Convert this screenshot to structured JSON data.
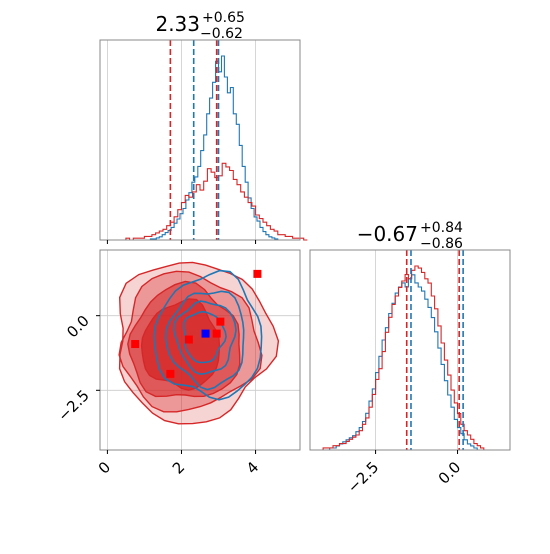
{
  "chart_data": {
    "type": "corner",
    "colors": {
      "red": "#d62728",
      "blue": "#1f77b4",
      "grid": "#cccccc",
      "frame": "#888888"
    },
    "param1": {
      "title_value": "2.33",
      "title_plus": "+0.65",
      "title_minus": "−0.62",
      "quantiles_red": [
        1.7,
        2.95
      ],
      "quantiles_blue": [
        2.33,
        3.0
      ],
      "xlim": [
        -0.2,
        5.2
      ],
      "xticks": [
        0,
        2,
        4
      ],
      "xtick_labels": [
        "0",
        "2",
        "4"
      ],
      "hist_red": {
        "bin_start": 0.4,
        "bin_width": 0.1,
        "values": [
          0,
          1,
          0,
          1,
          1,
          1,
          2,
          2,
          3,
          4,
          5,
          6,
          8,
          10,
          13,
          17,
          21,
          25,
          24,
          27,
          31,
          28,
          33,
          40,
          38,
          35,
          36,
          43,
          41,
          39,
          34,
          31,
          27,
          24,
          21,
          19,
          14,
          12,
          10,
          8,
          6,
          5,
          3,
          3,
          2,
          2,
          1,
          1,
          1,
          0
        ]
      },
      "hist_blue": {
        "bin_start": 1.0,
        "bin_width": 0.08,
        "values": [
          0,
          0,
          1,
          1,
          2,
          3,
          5,
          7,
          9,
          12,
          16,
          20,
          25,
          30,
          38,
          45,
          55,
          60,
          70,
          85,
          100,
          120,
          135,
          150,
          170,
          160,
          175,
          155,
          140,
          145,
          120,
          110,
          90,
          70,
          55,
          40,
          30,
          22,
          18,
          12,
          8,
          5,
          3,
          2,
          1,
          0
        ]
      }
    },
    "param2": {
      "title_value": "−0.67",
      "title_plus": "+0.84",
      "title_minus": "−0.86",
      "quantiles_red": [
        -1.55,
        0.05
      ],
      "quantiles_blue": [
        -1.42,
        0.17
      ],
      "xlim": [
        -4.5,
        1.6
      ],
      "xticks": [
        -2.5,
        0.0
      ],
      "xtick_labels": [
        "−2.5",
        "0.0"
      ],
      "hist_red": {
        "bin_start": -4.2,
        "bin_width": 0.1,
        "values": [
          0,
          1,
          1,
          1,
          2,
          2,
          3,
          3,
          4,
          5,
          6,
          7,
          9,
          12,
          15,
          20,
          26,
          33,
          38,
          46,
          55,
          62,
          68,
          72,
          76,
          79,
          82,
          80,
          84,
          86,
          85,
          83,
          80,
          78,
          72,
          66,
          58,
          50,
          42,
          35,
          28,
          22,
          17,
          12,
          9,
          7,
          5,
          3,
          2,
          1
        ]
      },
      "hist_blue": {
        "bin_start": -4.0,
        "bin_width": 0.1,
        "values": [
          0,
          1,
          1,
          2,
          3,
          4,
          5,
          6,
          7,
          9,
          11,
          14,
          18,
          24,
          30,
          38,
          46,
          54,
          60,
          67,
          72,
          77,
          80,
          82,
          80,
          84,
          86,
          82,
          80,
          78,
          74,
          70,
          65,
          58,
          50,
          42,
          34,
          27,
          21,
          15,
          11,
          8,
          5,
          3,
          2,
          1
        ]
      }
    },
    "joint": {
      "xlim": [
        -0.2,
        5.2
      ],
      "ylim": [
        -4.5,
        2.2
      ],
      "yticks": [
        0.0,
        -2.5
      ],
      "ytick_labels": [
        "0.0",
        "−2.5"
      ],
      "red_levels": [
        {
          "cx": 2.3,
          "cy": -0.85,
          "rx": 2.1,
          "ry": 2.7,
          "alpha": 0.2
        },
        {
          "cx": 2.2,
          "cy": -0.9,
          "rx": 1.85,
          "ry": 2.3,
          "alpha": 0.35
        },
        {
          "cx": 2.1,
          "cy": -0.95,
          "rx": 1.5,
          "ry": 1.9,
          "alpha": 0.55
        },
        {
          "cx": 2.0,
          "cy": -1.0,
          "rx": 1.05,
          "ry": 1.45,
          "alpha": 0.8
        }
      ],
      "blue_levels": [
        {
          "cx": 2.75,
          "cy": -0.7,
          "rx": 1.45,
          "ry": 2.05
        },
        {
          "cx": 2.7,
          "cy": -0.75,
          "rx": 1.05,
          "ry": 1.6
        },
        {
          "cx": 2.65,
          "cy": -0.7,
          "rx": 0.8,
          "ry": 1.2
        },
        {
          "cx": 2.6,
          "cy": -0.7,
          "rx": 0.55,
          "ry": 0.85
        }
      ],
      "red_squares": [
        [
          4.05,
          1.4
        ],
        [
          0.75,
          -0.95
        ],
        [
          1.7,
          -1.95
        ],
        [
          2.2,
          -0.8
        ],
        [
          3.05,
          -0.2
        ],
        [
          2.95,
          -0.6
        ]
      ],
      "blue_squares": [
        [
          2.65,
          -0.6
        ]
      ]
    }
  }
}
